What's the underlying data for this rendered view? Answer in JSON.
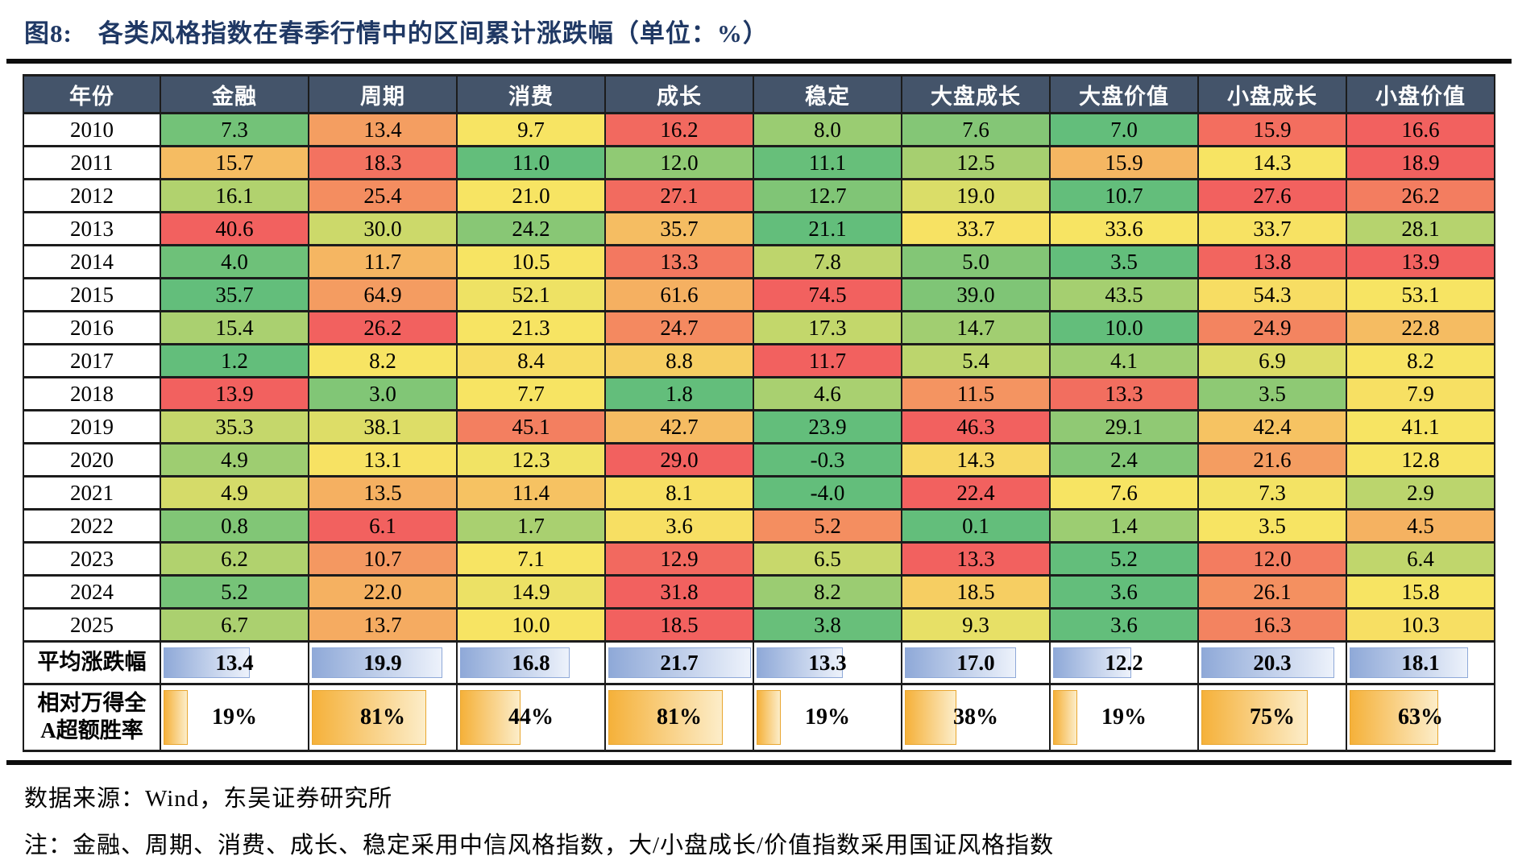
{
  "figure": {
    "title": "图8:　各类风格指数在春季行情中的区间累计涨跌幅（单位：%）"
  },
  "source_line": "数据来源：Wind，东吴证券研究所",
  "note_line": "注：金融、周期、消费、成长、稳定采用中信风格指数，大/小盘成长/价值指数采用国证风格指数",
  "chart_data": {
    "type": "table",
    "subtype": "heatmap",
    "title": "各类风格指数在春季行情中的区间累计涨跌幅",
    "unit": "%",
    "columns": [
      "年份",
      "金融",
      "周期",
      "消费",
      "成长",
      "稳定",
      "大盘成长",
      "大盘价值",
      "小盘成长",
      "小盘价值"
    ],
    "rows": [
      {
        "year": "2010",
        "values": [
          "7.3",
          "13.4",
          "9.7",
          "16.2",
          "8.0",
          "7.6",
          "7.0",
          "15.9",
          "16.6"
        ]
      },
      {
        "year": "2011",
        "values": [
          "15.7",
          "18.3",
          "11.0",
          "12.0",
          "11.1",
          "12.5",
          "15.9",
          "14.3",
          "18.9"
        ]
      },
      {
        "year": "2012",
        "values": [
          "16.1",
          "25.4",
          "21.0",
          "27.1",
          "12.7",
          "19.0",
          "10.7",
          "27.6",
          "26.2"
        ]
      },
      {
        "year": "2013",
        "values": [
          "40.6",
          "30.0",
          "24.2",
          "35.7",
          "21.1",
          "33.7",
          "33.6",
          "33.7",
          "28.1"
        ]
      },
      {
        "year": "2014",
        "values": [
          "4.0",
          "11.7",
          "10.5",
          "13.3",
          "7.8",
          "5.0",
          "3.5",
          "13.8",
          "13.9"
        ]
      },
      {
        "year": "2015",
        "values": [
          "35.7",
          "64.9",
          "52.1",
          "61.6",
          "74.5",
          "39.0",
          "43.5",
          "54.3",
          "53.1"
        ]
      },
      {
        "year": "2016",
        "values": [
          "15.4",
          "26.2",
          "21.3",
          "24.7",
          "17.3",
          "14.7",
          "10.0",
          "24.9",
          "22.8"
        ]
      },
      {
        "year": "2017",
        "values": [
          "1.2",
          "8.2",
          "8.4",
          "8.8",
          "11.7",
          "5.4",
          "4.1",
          "6.9",
          "8.2"
        ]
      },
      {
        "year": "2018",
        "values": [
          "13.9",
          "3.0",
          "7.7",
          "1.8",
          "4.6",
          "11.5",
          "13.3",
          "3.5",
          "7.9"
        ]
      },
      {
        "year": "2019",
        "values": [
          "35.3",
          "38.1",
          "45.1",
          "42.7",
          "23.9",
          "46.3",
          "29.1",
          "42.4",
          "41.1"
        ]
      },
      {
        "year": "2020",
        "values": [
          "4.9",
          "13.1",
          "12.3",
          "29.0",
          "-0.3",
          "14.3",
          "2.4",
          "21.6",
          "12.8"
        ]
      },
      {
        "year": "2021",
        "values": [
          "4.9",
          "13.5",
          "11.4",
          "8.1",
          "-4.0",
          "22.4",
          "7.6",
          "7.3",
          "2.9"
        ]
      },
      {
        "year": "2022",
        "values": [
          "0.8",
          "6.1",
          "1.7",
          "3.6",
          "5.2",
          "0.1",
          "1.4",
          "3.5",
          "4.5"
        ]
      },
      {
        "year": "2023",
        "values": [
          "6.2",
          "10.7",
          "7.1",
          "12.9",
          "6.5",
          "13.3",
          "5.2",
          "12.0",
          "6.4"
        ]
      },
      {
        "year": "2024",
        "values": [
          "5.2",
          "22.0",
          "14.9",
          "31.8",
          "8.2",
          "18.5",
          "3.6",
          "26.1",
          "15.8"
        ]
      },
      {
        "year": "2025",
        "values": [
          "6.7",
          "13.7",
          "10.0",
          "18.5",
          "3.8",
          "9.3",
          "3.6",
          "16.3",
          "10.3"
        ]
      }
    ],
    "average_row": {
      "label": "平均涨跌幅",
      "values": [
        "13.4",
        "19.9",
        "16.8",
        "21.7",
        "13.3",
        "17.0",
        "12.2",
        "20.3",
        "18.1"
      ]
    },
    "winrate_row": {
      "label": "相对万得全A超额胜率",
      "label_lines": [
        "相对万得全",
        "A超额胜率"
      ],
      "values": [
        "19%",
        "81%",
        "44%",
        "81%",
        "19%",
        "38%",
        "19%",
        "75%",
        "63%"
      ]
    },
    "colorscale": {
      "low": "#63BE7B",
      "mid": "#F7E463",
      "high": "#F2615F",
      "basis": "per-row min / median / max"
    },
    "colors": {
      "title": "#1F3864",
      "header_bg": "#44546A",
      "header_text": "#FFFFFF",
      "grid": "#1C1C1C",
      "avg_bar_start": "#8FA9D8",
      "avg_bar_end": "#EDF2FB",
      "avg_bar_border": "#8FA9D8",
      "win_bar_start": "#F5B13A",
      "win_bar_end": "#FCEDC9",
      "win_bar_border": "#E9A62F"
    }
  }
}
